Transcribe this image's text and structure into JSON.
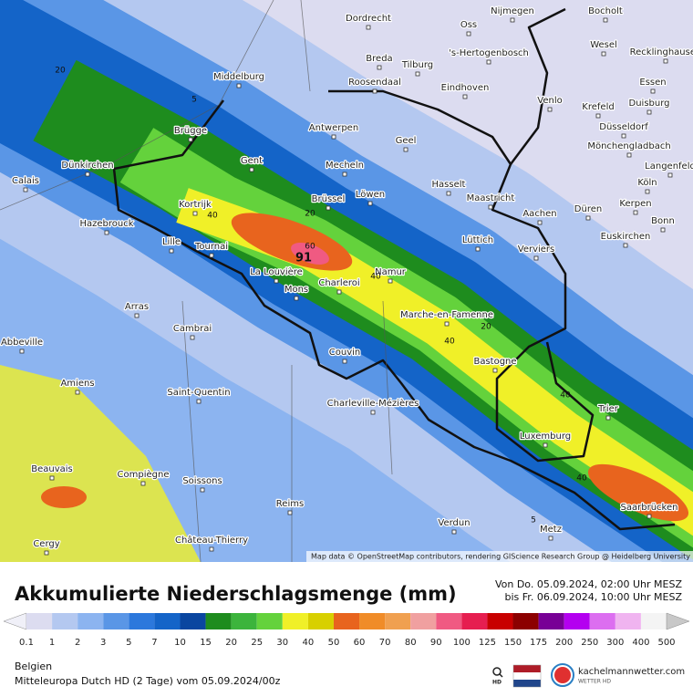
{
  "map": {
    "cities": [
      "Dordrecht",
      "Oss",
      "Nijmegen",
      "Bocholt",
      "Breda",
      "Tilburg",
      "'s-Hertogenbosch",
      "Wesel",
      "Recklinghausen",
      "Middelburg",
      "Roosendaal",
      "Eindhoven",
      "Venlo",
      "Essen",
      "Duisburg",
      "Krefeld",
      "Antwerpen",
      "Brügge",
      "Düsseldorf",
      "Geel",
      "Mönchengladbach",
      "Gent",
      "Dünkirchen",
      "Mecheln",
      "Langenfeld",
      "Calais",
      "Hasselt",
      "Köln",
      "Brüssel",
      "Löwen",
      "Kortrijk",
      "Maastricht",
      "Düren",
      "Kerpen",
      "Aachen",
      "Bonn",
      "Hazebrouck",
      "Lille",
      "Tournai",
      "Lüttich",
      "Euskirchen",
      "Verviers",
      "La Louvière",
      "Namur",
      "Charleroi",
      "Mons",
      "Arras",
      "Marche-en-Famenne",
      "Cambrai",
      "Abbeville",
      "Couvin",
      "Bastogne",
      "Amiens",
      "Saint-Quentin",
      "Charleville-Mézières",
      "Trier",
      "Luxemburg",
      "Beauvais",
      "Compiègne",
      "Soissons",
      "Reims",
      "Saarbrücken",
      "Verdun",
      "Metz",
      "Château-Thierry",
      "Cergy"
    ],
    "contour_labels": [
      20,
      5,
      40,
      20,
      60,
      91,
      40,
      20,
      40,
      40,
      40,
      5
    ],
    "attribution": "Map data © OpenStreetMap contributors, rendering GIScience Research Group @ Heidelberg University"
  },
  "legend": {
    "title": "Akkumulierte Niederschlagsmenge (mm)",
    "period": [
      "Von Do. 05.09.2024, 02:00 Uhr MESZ",
      "bis Fr. 06.09.2024, 10:00 Uhr MESZ"
    ],
    "scale": [
      0.1,
      1,
      2,
      3,
      5,
      7,
      10,
      15,
      20,
      25,
      30,
      40,
      50,
      60,
      70,
      80,
      90,
      100,
      125,
      150,
      175,
      200,
      250,
      300,
      400,
      500
    ],
    "colors": [
      "#f0f0f8",
      "#dcdcf0",
      "#b4c8f0",
      "#8cb4f0",
      "#5a96e6",
      "#2c78dc",
      "#1464c8",
      "#0a46a0",
      "#1e8c1e",
      "#3cb43c",
      "#64d23c",
      "#f0f028",
      "#d8d000",
      "#e8641e",
      "#f08c28",
      "#f0a050",
      "#f0a0a0",
      "#f05a82",
      "#e61e50",
      "#c80000",
      "#8c0000",
      "#780096",
      "#b400f0",
      "#dc6ef0",
      "#f0b4f0",
      "#f4f4f4",
      "#c8c8c8"
    ]
  },
  "footer": {
    "region": "Belgien",
    "model": "Mitteleuropa Dutch HD  (2 Tage)  vom  05.09.2024/00z",
    "search": "HD",
    "brand": "kachelmannwetter.com",
    "brand_sub": "WETTER HD"
  }
}
